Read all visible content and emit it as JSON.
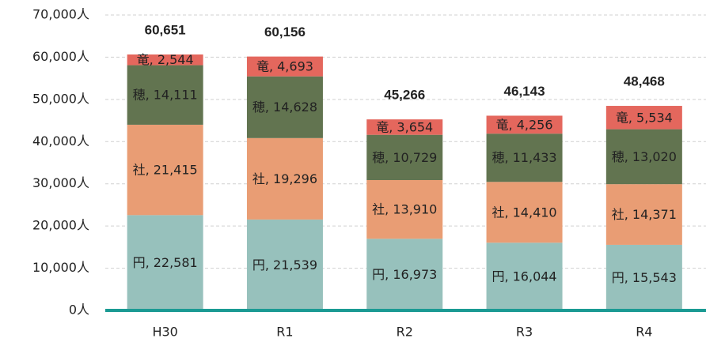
{
  "chart_data": {
    "type": "stacked_bar",
    "categories": [
      "H30",
      "R1",
      "R2",
      "R3",
      "R4"
    ],
    "series": [
      {
        "name": "円",
        "color": "#97c1bc",
        "values": [
          22581,
          21539,
          16973,
          16044,
          15543
        ],
        "value_labels": [
          "円, 22,581",
          "円, 21,539",
          "円, 16,973",
          "円, 16,044",
          "円, 15,543"
        ]
      },
      {
        "name": "社",
        "color": "#e99d74",
        "values": [
          21415,
          19296,
          13910,
          14410,
          14371
        ],
        "value_labels": [
          "社, 21,415",
          "社, 19,296",
          "社, 13,910",
          "社, 14,410",
          "社, 14,371"
        ]
      },
      {
        "name": "穂",
        "color": "#627450",
        "values": [
          14111,
          14628,
          10729,
          11433,
          13020
        ],
        "value_labels": [
          "穂, 14,111",
          "穂, 14,628",
          "穂, 10,729",
          "穂, 11,433",
          "穂, 13,020"
        ]
      },
      {
        "name": "竜",
        "color": "#e4675d",
        "values": [
          2544,
          4693,
          3654,
          4256,
          5534
        ],
        "value_labels": [
          "竜, 2,544",
          "竜, 4,693",
          "竜, 3,654",
          "竜, 4,256",
          "竜, 5,534"
        ]
      }
    ],
    "totals": [
      60651,
      60156,
      45266,
      46143,
      48468
    ],
    "total_labels": [
      "60,651",
      "60,156",
      "45,266",
      "46,143",
      "48,468"
    ],
    "ylim": [
      0,
      70000
    ],
    "yticks": [
      {
        "value": 0,
        "label": "0人"
      },
      {
        "value": 10000,
        "label": "10,000人"
      },
      {
        "value": 20000,
        "label": "20,000人"
      },
      {
        "value": 30000,
        "label": "30,000人"
      },
      {
        "value": 40000,
        "label": "40,000人"
      },
      {
        "value": 50000,
        "label": "50,000人"
      },
      {
        "value": 60000,
        "label": "60,000人"
      },
      {
        "value": 70000,
        "label": "70,000人"
      }
    ],
    "grid": true,
    "axis_color": "#1a9a93"
  }
}
